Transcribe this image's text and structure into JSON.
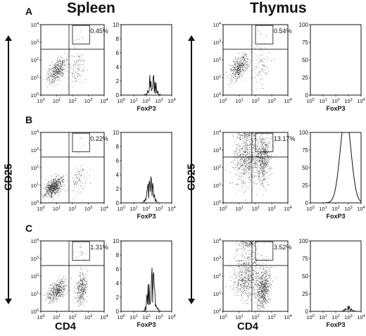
{
  "figure": {
    "col_left": "Spleen",
    "col_right": "Thymus",
    "row_labels": [
      "A",
      "B",
      "C"
    ],
    "y_axis_label": "CD25",
    "x_axis_label": "CD4",
    "hist_axis_label": "FoxP3"
  },
  "chart_data": [
    {
      "id": "spleen-A-dot",
      "type": "scatter",
      "tissue": "Spleen",
      "row": "A",
      "xlabel": "",
      "ylabel": "",
      "x_scale": "log",
      "y_scale": "log",
      "xlim": [
        1,
        10000
      ],
      "ylim": [
        1,
        10000
      ],
      "gate_label": "0.45%",
      "x_ticks": [
        "10^0",
        "10^1",
        "10^2",
        "10^3",
        "10^4"
      ],
      "y_ticks": [
        "10^0",
        "10^1",
        "10^2",
        "10^3",
        "10^4"
      ],
      "clusters": [
        {
          "center": [
            10,
            25
          ],
          "spread": [
            0.32,
            0.35
          ],
          "count": 420,
          "corr": 0.6
        },
        {
          "center": [
            200,
            40
          ],
          "spread": [
            0.25,
            0.55
          ],
          "count": 110,
          "corr": 0.2
        },
        {
          "center": [
            250,
            1500
          ],
          "spread": [
            0.2,
            0.35
          ],
          "count": 8,
          "corr": 0
        }
      ]
    },
    {
      "id": "spleen-A-hist",
      "type": "area",
      "tissue": "Spleen",
      "row": "A",
      "xlabel": "FoxP3",
      "x_scale": "log",
      "xlim": [
        1,
        10000
      ],
      "ylim": [
        0,
        10
      ],
      "y_ticks": [
        0,
        2,
        4,
        6,
        8,
        10
      ],
      "peak_center": 300,
      "peak_height": 3.5,
      "noisy": true
    },
    {
      "id": "spleen-B-dot",
      "type": "scatter",
      "tissue": "Spleen",
      "row": "B",
      "xlabel": "",
      "ylabel": "",
      "x_scale": "log",
      "y_scale": "log",
      "xlim": [
        1,
        10000
      ],
      "ylim": [
        1,
        10000
      ],
      "gate_label": "0.22%",
      "x_ticks": [
        "10^0",
        "10^1",
        "10^2",
        "10^3",
        "10^4"
      ],
      "y_ticks": [
        "10^0",
        "10^1",
        "10^2",
        "10^3",
        "10^4"
      ],
      "clusters": [
        {
          "center": [
            6,
            8
          ],
          "spread": [
            0.28,
            0.28
          ],
          "count": 650,
          "corr": 0.5
        },
        {
          "center": [
            250,
            20
          ],
          "spread": [
            0.25,
            0.4
          ],
          "count": 90,
          "corr": 0.2
        },
        {
          "center": [
            300,
            1200
          ],
          "spread": [
            0.2,
            0.35
          ],
          "count": 6,
          "corr": 0
        }
      ]
    },
    {
      "id": "spleen-B-hist",
      "type": "area",
      "tissue": "Spleen",
      "row": "B",
      "xlabel": "FoxP3",
      "x_scale": "log",
      "xlim": [
        1,
        10000
      ],
      "ylim": [
        0,
        10
      ],
      "y_ticks": [
        0,
        2,
        4,
        6,
        8,
        10
      ],
      "peak_center": 200,
      "peak_height": 3.2,
      "noisy": true
    },
    {
      "id": "spleen-C-dot",
      "type": "scatter",
      "tissue": "Spleen",
      "row": "C",
      "xlabel": "",
      "ylabel": "CD25",
      "x_scale": "log",
      "y_scale": "log",
      "xlim": [
        1,
        10000
      ],
      "ylim": [
        1,
        10000
      ],
      "gate_label": "1.31%",
      "x_ticks": [
        "10^0",
        "10^1",
        "10^2",
        "10^3",
        "10^4"
      ],
      "y_ticks": [
        "10^0",
        "10^1",
        "10^2",
        "10^3",
        "10^4"
      ],
      "clusters": [
        {
          "center": [
            10,
            15
          ],
          "spread": [
            0.3,
            0.3
          ],
          "count": 420,
          "corr": 0.5
        },
        {
          "center": [
            350,
            20
          ],
          "spread": [
            0.2,
            0.45
          ],
          "count": 320,
          "corr": 0.3
        },
        {
          "center": [
            300,
            1500
          ],
          "spread": [
            0.2,
            0.3
          ],
          "count": 20,
          "corr": 0
        }
      ]
    },
    {
      "id": "spleen-C-hist",
      "type": "area",
      "tissue": "Spleen",
      "row": "C",
      "xlabel": "FoxP3",
      "x_scale": "log",
      "xlim": [
        1,
        10000
      ],
      "ylim": [
        0,
        10
      ],
      "y_ticks": [
        0,
        2,
        4,
        6,
        8,
        10
      ],
      "peak_center": 250,
      "peak_height": 7.2,
      "noisy": true
    },
    {
      "id": "thymus-A-dot",
      "type": "scatter",
      "tissue": "Thymus",
      "row": "A",
      "xlabel": "",
      "ylabel": "",
      "x_scale": "log",
      "y_scale": "log",
      "xlim": [
        1,
        10000
      ],
      "ylim": [
        1,
        10000
      ],
      "gate_label": "0.54%",
      "x_ticks": [
        "10^0",
        "10^1",
        "10^2",
        "10^3",
        "10^4"
      ],
      "y_ticks": [
        "10^0",
        "10^1",
        "10^2",
        "10^3",
        "10^4"
      ],
      "clusters": [
        {
          "center": [
            10,
            40
          ],
          "spread": [
            0.3,
            0.35
          ],
          "count": 420,
          "corr": 0.6
        },
        {
          "center": [
            200,
            40
          ],
          "spread": [
            0.3,
            0.6
          ],
          "count": 90,
          "corr": 0.2
        },
        {
          "center": [
            250,
            1800
          ],
          "spread": [
            0.2,
            0.3
          ],
          "count": 8,
          "corr": 0
        }
      ]
    },
    {
      "id": "thymus-A-hist",
      "type": "area",
      "tissue": "Thymus",
      "row": "A",
      "xlabel": "FoxP3",
      "x_scale": "log",
      "xlim": [
        1,
        10000
      ],
      "ylim": [
        0,
        100
      ],
      "y_ticks": [
        0,
        25,
        50,
        75,
        100
      ],
      "peak_center": 300,
      "peak_height": 0,
      "noisy": false
    },
    {
      "id": "thymus-B-dot",
      "type": "scatter",
      "tissue": "Thymus",
      "row": "B",
      "xlabel": "",
      "ylabel": "CD25",
      "x_scale": "log",
      "y_scale": "log",
      "xlim": [
        1,
        10000
      ],
      "ylim": [
        1,
        10000
      ],
      "gate_label": "13.17%",
      "x_ticks": [
        "10^0",
        "10^1",
        "10^2",
        "10^3",
        "10^4"
      ],
      "y_ticks": [
        "10^0",
        "10^1",
        "10^2",
        "10^3",
        "10^4"
      ],
      "clusters": [
        {
          "center": [
            30,
            300
          ],
          "spread": [
            0.45,
            0.75
          ],
          "count": 700,
          "corr": 0.1
        },
        {
          "center": [
            300,
            300
          ],
          "spread": [
            0.22,
            0.7
          ],
          "count": 500,
          "corr": 0.1
        },
        {
          "center": [
            30,
            8000
          ],
          "spread": [
            0.35,
            0.15
          ],
          "count": 120,
          "corr": 0
        }
      ]
    },
    {
      "id": "thymus-B-hist",
      "type": "line",
      "tissue": "Thymus",
      "row": "B",
      "xlabel": "FoxP3",
      "x_scale": "log",
      "xlim": [
        1,
        10000
      ],
      "ylim": [
        0,
        100
      ],
      "y_ticks": [
        0,
        25,
        50,
        75,
        100
      ],
      "peak_center": 600,
      "peak_height": 100,
      "noisy": false
    },
    {
      "id": "thymus-C-dot",
      "type": "scatter",
      "tissue": "Thymus",
      "row": "C",
      "xlabel": "CD4",
      "ylabel": "",
      "x_scale": "log",
      "y_scale": "log",
      "xlim": [
        1,
        10000
      ],
      "ylim": [
        1,
        10000
      ],
      "gate_label": "3.52%",
      "x_ticks": [
        "10^0",
        "10^1",
        "10^2",
        "10^3",
        "10^4"
      ],
      "y_ticks": [
        "10^0",
        "10^1",
        "10^2",
        "10^3",
        "10^4"
      ],
      "clusters": [
        {
          "center": [
            30,
            100
          ],
          "spread": [
            0.45,
            0.75
          ],
          "count": 650,
          "corr": 0.1
        },
        {
          "center": [
            300,
            20
          ],
          "spread": [
            0.22,
            0.6
          ],
          "count": 600,
          "corr": 0.2
        },
        {
          "center": [
            30,
            8000
          ],
          "spread": [
            0.3,
            0.15
          ],
          "count": 140,
          "corr": 0
        }
      ]
    },
    {
      "id": "thymus-C-hist",
      "type": "area",
      "tissue": "Thymus",
      "row": "C",
      "xlabel": "FoxP3",
      "x_scale": "log",
      "xlim": [
        1,
        10000
      ],
      "ylim": [
        0,
        100
      ],
      "y_ticks": [
        0,
        25,
        50,
        75,
        100
      ],
      "peak_center": 1000,
      "peak_height": 8,
      "noisy": true
    }
  ]
}
